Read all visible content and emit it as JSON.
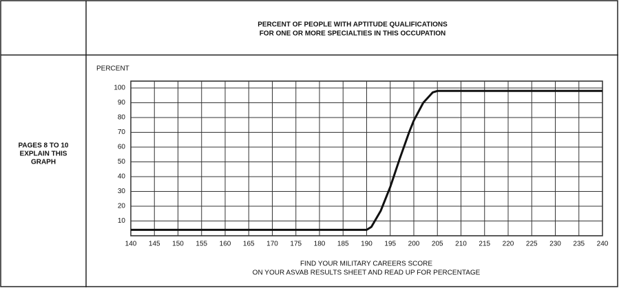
{
  "chart_data": {
    "type": "line",
    "title_lines": [
      "PERCENT OF PEOPLE WITH APTITUDE QUALIFICATIONS",
      "FOR ONE OR MORE SPECIALTIES IN THIS OCCUPATION"
    ],
    "side_note_lines": [
      "PAGES 8 TO 10",
      "EXPLAIN THIS",
      "GRAPH"
    ],
    "ylabel": "PERCENT",
    "xlabel_lines": [
      "FIND YOUR MILITARY CAREERS SCORE",
      "ON YOUR ASVAB RESULTS SHEET AND READ UP FOR PERCENTAGE"
    ],
    "x": [
      140,
      190,
      191,
      193,
      195,
      197,
      199,
      200,
      202,
      204,
      205,
      240
    ],
    "series": [
      {
        "name": "Percent qualified",
        "color": "#111111",
        "values": [
          4,
          4,
          6,
          17,
          33,
          52,
          70,
          78,
          90,
          97,
          98,
          98
        ]
      }
    ],
    "xlim": [
      140,
      240
    ],
    "xticks": [
      140,
      145,
      150,
      155,
      160,
      165,
      170,
      175,
      180,
      185,
      190,
      195,
      200,
      205,
      210,
      215,
      220,
      225,
      230,
      235,
      240
    ],
    "ylim": [
      0,
      100
    ],
    "yticks": [
      10,
      20,
      30,
      40,
      50,
      60,
      70,
      80,
      90,
      100
    ],
    "grid": true
  }
}
